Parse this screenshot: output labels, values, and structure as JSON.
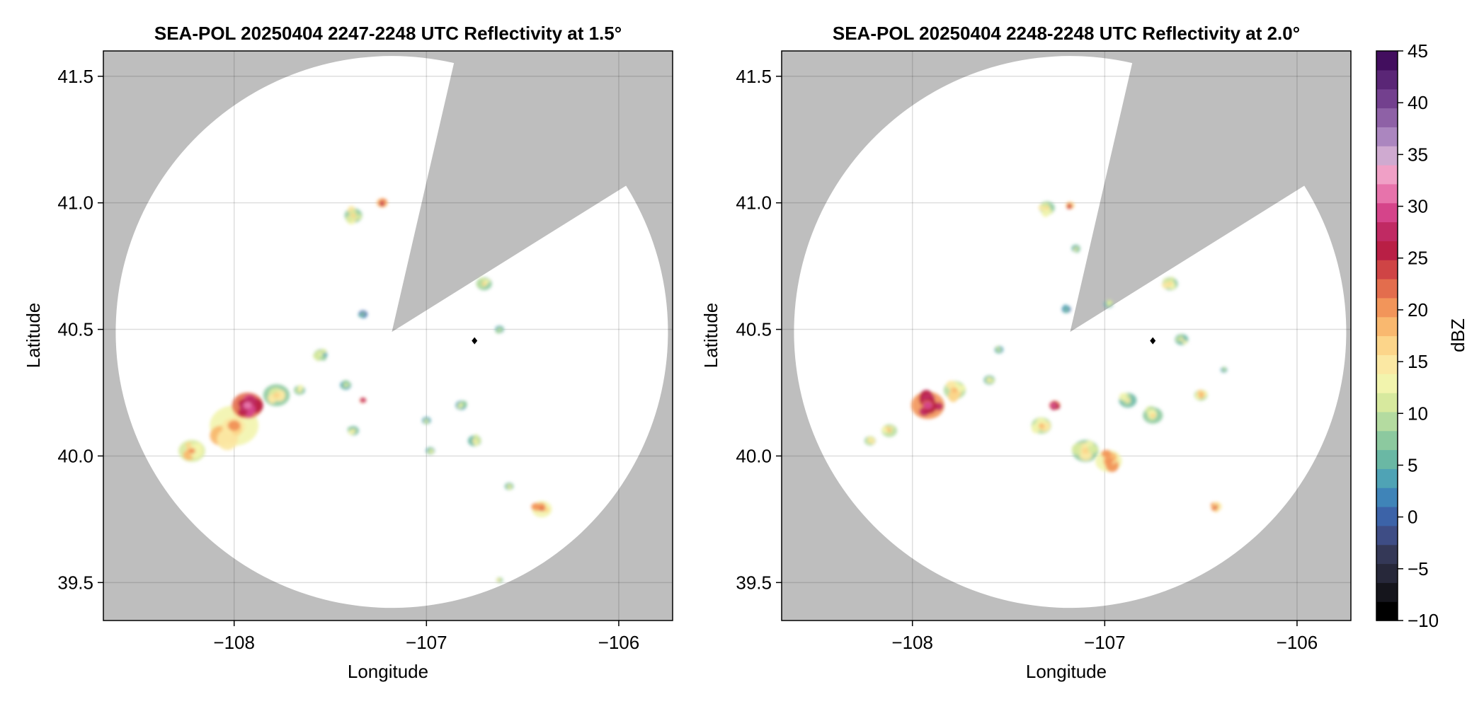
{
  "figure": {
    "colorbar": {
      "label": "dBZ",
      "range": [
        -10,
        45
      ],
      "ticks": [
        -10,
        -5,
        0,
        5,
        10,
        15,
        20,
        25,
        30,
        35,
        40,
        45
      ],
      "tick_labels": [
        "−10",
        "−5",
        "0",
        "5",
        "10",
        "15",
        "20",
        "25",
        "30",
        "35",
        "40",
        "45"
      ],
      "colors": [
        "#000000",
        "#15151c",
        "#27283a",
        "#343857",
        "#3e4d85",
        "#3c63a8",
        "#3f84b8",
        "#4fa3b5",
        "#6ab8a4",
        "#8cc99f",
        "#b4dba0",
        "#d7e99e",
        "#f2f4ad",
        "#fbe8a3",
        "#fcd58a",
        "#f9b86f",
        "#f2955a",
        "#e36d4d",
        "#cf4445",
        "#b91f45",
        "#c02a63",
        "#d5448a",
        "#e773ab",
        "#f0a0c6",
        "#cfaad0",
        "#ab86bf",
        "#8e61a6",
        "#73408e",
        "#5a2676",
        "#420e5e"
      ]
    }
  },
  "chart_data": [
    {
      "type": "heatmap",
      "title": "SEA-POL 20250404 2247-2248 UTC Reflectivity at 1.5°",
      "xlabel": "Longitude",
      "ylabel": "Latitude",
      "xlim": [
        -108.68,
        -105.72
      ],
      "ylim": [
        39.35,
        41.6
      ],
      "xticks": [
        -108,
        -107,
        -106
      ],
      "xtick_labels": [
        "−108",
        "−107",
        "−106"
      ],
      "yticks": [
        39.5,
        40.0,
        40.5,
        41.0,
        41.5
      ],
      "ytick_labels": [
        "39.5",
        "40.0",
        "40.5",
        "41.0",
        "41.5"
      ],
      "grid": true,
      "background_color": "#bebebe",
      "radar_center": [
        -107.18,
        40.49
      ],
      "blocked_sectors_deg": [
        [
          13,
          58
        ]
      ],
      "marker": {
        "lon": -106.75,
        "lat": 40.455,
        "shape": "diamond",
        "color": "#000000"
      },
      "echoes": [
        {
          "lon": -108.0,
          "lat": 40.12,
          "dbz": 18,
          "size": 0.22
        },
        {
          "lon": -107.93,
          "lat": 40.2,
          "dbz": 28,
          "size": 0.14
        },
        {
          "lon": -108.22,
          "lat": 40.02,
          "dbz": 17,
          "size": 0.12
        },
        {
          "lon": -107.78,
          "lat": 40.24,
          "dbz": 14,
          "size": 0.12
        },
        {
          "lon": -107.66,
          "lat": 40.26,
          "dbz": 12,
          "size": 0.05
        },
        {
          "lon": -107.55,
          "lat": 40.4,
          "dbz": 10,
          "size": 0.06
        },
        {
          "lon": -107.42,
          "lat": 40.28,
          "dbz": 9,
          "size": 0.05
        },
        {
          "lon": -107.38,
          "lat": 40.95,
          "dbz": 14,
          "size": 0.08
        },
        {
          "lon": -107.23,
          "lat": 41.0,
          "dbz": 24,
          "size": 0.05
        },
        {
          "lon": -107.33,
          "lat": 40.56,
          "dbz": 6,
          "size": 0.04
        },
        {
          "lon": -107.38,
          "lat": 40.1,
          "dbz": 12,
          "size": 0.05
        },
        {
          "lon": -107.33,
          "lat": 40.22,
          "dbz": 28,
          "size": 0.03
        },
        {
          "lon": -107.0,
          "lat": 40.14,
          "dbz": 10,
          "size": 0.04
        },
        {
          "lon": -106.98,
          "lat": 40.02,
          "dbz": 9,
          "size": 0.04
        },
        {
          "lon": -106.75,
          "lat": 40.06,
          "dbz": 11,
          "size": 0.06
        },
        {
          "lon": -106.82,
          "lat": 40.2,
          "dbz": 10,
          "size": 0.05
        },
        {
          "lon": -106.7,
          "lat": 40.68,
          "dbz": 13,
          "size": 0.07
        },
        {
          "lon": -106.62,
          "lat": 40.5,
          "dbz": 9,
          "size": 0.04
        },
        {
          "lon": -106.4,
          "lat": 39.79,
          "dbz": 19,
          "size": 0.09
        },
        {
          "lon": -106.57,
          "lat": 39.88,
          "dbz": 12,
          "size": 0.04
        },
        {
          "lon": -106.62,
          "lat": 39.51,
          "dbz": 13,
          "size": 0.03
        }
      ]
    },
    {
      "type": "heatmap",
      "title": "SEA-POL 20250404 2248-2248 UTC Reflectivity at 2.0°",
      "xlabel": "Longitude",
      "ylabel": "Latitude",
      "xlim": [
        -108.68,
        -105.72
      ],
      "ylim": [
        39.35,
        41.6
      ],
      "xticks": [
        -108,
        -107,
        -106
      ],
      "xtick_labels": [
        "−108",
        "−107",
        "−106"
      ],
      "yticks": [
        39.5,
        40.0,
        40.5,
        41.0,
        41.5
      ],
      "ytick_labels": [
        "39.5",
        "40.0",
        "40.5",
        "41.0",
        "41.5"
      ],
      "grid": true,
      "background_color": "#bebebe",
      "radar_center": [
        -107.18,
        40.49
      ],
      "blocked_sectors_deg": [
        [
          13,
          58
        ]
      ],
      "marker": {
        "lon": -106.75,
        "lat": 40.455,
        "shape": "diamond",
        "color": "#000000"
      },
      "echoes": [
        {
          "lon": -107.92,
          "lat": 40.2,
          "dbz": 26,
          "size": 0.15
        },
        {
          "lon": -107.78,
          "lat": 40.26,
          "dbz": 16,
          "size": 0.1
        },
        {
          "lon": -108.12,
          "lat": 40.1,
          "dbz": 15,
          "size": 0.07
        },
        {
          "lon": -108.22,
          "lat": 40.06,
          "dbz": 14,
          "size": 0.05
        },
        {
          "lon": -107.6,
          "lat": 40.3,
          "dbz": 12,
          "size": 0.05
        },
        {
          "lon": -107.55,
          "lat": 40.42,
          "dbz": 10,
          "size": 0.04
        },
        {
          "lon": -107.3,
          "lat": 40.98,
          "dbz": 14,
          "size": 0.07
        },
        {
          "lon": -107.18,
          "lat": 40.99,
          "dbz": 22,
          "size": 0.04
        },
        {
          "lon": -107.15,
          "lat": 40.82,
          "dbz": 11,
          "size": 0.04
        },
        {
          "lon": -107.2,
          "lat": 40.58,
          "dbz": 6,
          "size": 0.04
        },
        {
          "lon": -107.33,
          "lat": 40.12,
          "dbz": 15,
          "size": 0.09
        },
        {
          "lon": -107.26,
          "lat": 40.2,
          "dbz": 28,
          "size": 0.05
        },
        {
          "lon": -107.1,
          "lat": 40.02,
          "dbz": 14,
          "size": 0.12
        },
        {
          "lon": -106.98,
          "lat": 39.98,
          "dbz": 18,
          "size": 0.12
        },
        {
          "lon": -106.88,
          "lat": 40.22,
          "dbz": 12,
          "size": 0.08
        },
        {
          "lon": -106.75,
          "lat": 40.16,
          "dbz": 13,
          "size": 0.09
        },
        {
          "lon": -106.66,
          "lat": 40.68,
          "dbz": 14,
          "size": 0.07
        },
        {
          "lon": -106.6,
          "lat": 40.46,
          "dbz": 11,
          "size": 0.06
        },
        {
          "lon": -106.5,
          "lat": 40.24,
          "dbz": 16,
          "size": 0.06
        },
        {
          "lon": -106.42,
          "lat": 39.8,
          "dbz": 20,
          "size": 0.05
        },
        {
          "lon": -106.38,
          "lat": 40.34,
          "dbz": 9,
          "size": 0.03
        },
        {
          "lon": -106.98,
          "lat": 40.6,
          "dbz": 10,
          "size": 0.04
        }
      ]
    }
  ]
}
